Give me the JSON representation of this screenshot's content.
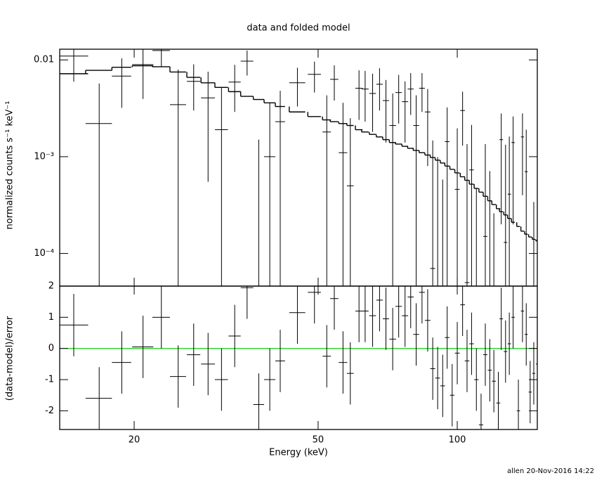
{
  "chart_data": {
    "type": "errorbar",
    "title": "data and folded model",
    "xlabel": "Energy (keV)",
    "ylabel": "normalized counts s⁻¹ keV⁻¹",
    "residual_ylabel": "(data-model)/error",
    "log_x": true,
    "log_y": true,
    "color": "#000000",
    "zero_line_color": "#00c800",
    "xlim": [
      13.8,
      149
    ],
    "xticks": [
      20,
      50,
      100
    ],
    "ylim": [
      4.6e-05,
      0.0129
    ],
    "yticks": [
      0.01,
      {
        "value": 0.001,
        "label": "10⁻³"
      },
      {
        "value": 0.0001,
        "label": "10⁻⁴"
      }
    ],
    "residual_ylim": [
      -2.6,
      2
    ],
    "residual_yticks": [
      -2,
      -1,
      0,
      1,
      2
    ],
    "residual_error": 1,
    "x": [
      14.8,
      16.8,
      18.8,
      20.9,
      22.9,
      24.9,
      26.9,
      28.9,
      30.9,
      33.0,
      35.1,
      37.2,
      39.3,
      41.4,
      45.1,
      49.1,
      52.2,
      54.2,
      56.6,
      58.7,
      61.3,
      63.2,
      65.6,
      67.9,
      70.1,
      72.5,
      74.7,
      77.1,
      79.3,
      81.5,
      83.9,
      86.3,
      88.5,
      90.7,
      93.0,
      95.1,
      97.5,
      100,
      102.7,
      105,
      107.4,
      110,
      112.6,
      115,
      117.6,
      120,
      122.7,
      124.5,
      127.2,
      129.6,
      132.1,
      135.6,
      138.4,
      141,
      143.8,
      146.4,
      149
    ],
    "xerr": [
      1.1,
      1.1,
      0.9,
      1.1,
      1.0,
      1.0,
      0.9,
      1.0,
      1.0,
      1.0,
      1.1,
      1.0,
      1.1,
      1.0,
      1.8,
      1.6,
      1.1,
      1.1,
      1.2,
      1.0,
      1.1,
      1.1,
      1.1,
      1.1,
      1.1,
      1.2,
      1.2,
      1.2,
      1.2,
      1.2,
      1.2,
      1.2,
      1.1,
      1.1,
      1.1,
      1.1,
      1.1,
      1.2,
      1.2,
      1.2,
      1.2,
      1.2,
      1.2,
      1.2,
      1.2,
      1.2,
      1.2,
      1.1,
      1.1,
      1.1,
      1.1,
      1.1,
      1.1,
      1.1,
      1.1,
      1.1,
      1.1
    ],
    "values": [
      0.01095,
      0.0022,
      0.0068,
      0.00895,
      0.0125,
      0.00345,
      0.006,
      0.00405,
      0.0019,
      0.0059,
      0.0097,
      -0.0015,
      0.001,
      0.0023,
      0.0058,
      0.0071,
      0.0018,
      0.0063,
      0.0011,
      0.0005,
      0.0051,
      0.005,
      0.0045,
      0.0056,
      0.0038,
      0.0021,
      0.0046,
      0.0037,
      0.005,
      0.0021,
      0.0051,
      0.0029,
      7e-05,
      -0.00041,
      -0.00082,
      0.00143,
      -0.0014,
      0.00046,
      0.003,
      5e-05,
      0.00073,
      -0.00083,
      -0.0028,
      0.00015,
      -0.00049,
      -0.00094,
      -0.0018,
      0.0015,
      0.00013,
      0.00041,
      0.0014,
      -0.002,
      0.0016,
      0.0007,
      -0.0014,
      -0.00066,
      -0.00036
    ],
    "errors": [
      0.005,
      0.0035,
      0.0036,
      0.005,
      0.004,
      0.0045,
      0.003,
      0.0035,
      0.0033,
      0.003,
      0.0028,
      0.003,
      0.0026,
      0.0025,
      0.0025,
      0.0025,
      0.0025,
      0.0025,
      0.0025,
      0.002,
      0.0027,
      0.0027,
      0.0027,
      0.0026,
      0.0024,
      0.0024,
      0.0024,
      0.0023,
      0.0023,
      0.0022,
      0.0022,
      0.0021,
      0.0014,
      0.0014,
      0.0014,
      0.0018,
      0.0014,
      0.0015,
      0.0017,
      0.0013,
      0.0014,
      0.0013,
      0.0013,
      0.0012,
      0.0012,
      0.0012,
      0.0012,
      0.0013,
      0.0012,
      0.0012,
      0.0012,
      0.0011,
      0.0012,
      0.0012,
      0.0011,
      0.001,
      0.001
    ],
    "model": [
      0.0072,
      0.0078,
      0.0084,
      0.0087,
      0.0085,
      0.0075,
      0.0066,
      0.0058,
      0.0052,
      0.0047,
      0.0042,
      0.0039,
      0.0036,
      0.0033,
      0.0029,
      0.0026,
      0.0024,
      0.0023,
      0.0022,
      0.0021,
      0.0019,
      0.0018,
      0.0017,
      0.0016,
      0.0015,
      0.0014,
      0.00135,
      0.00128,
      0.00122,
      0.00116,
      0.0011,
      0.00104,
      0.00098,
      0.00092,
      0.00086,
      0.0008,
      0.00074,
      0.00068,
      0.00062,
      0.00057,
      0.00052,
      0.00047,
      0.00043,
      0.00039,
      0.00035,
      0.00032,
      0.00029,
      0.00027,
      0.00025,
      0.00023,
      0.00021,
      0.00019,
      0.00017,
      0.000158,
      0.000148,
      0.00014,
      0.000135
    ],
    "residuals": [
      0.75,
      -1.6,
      -0.45,
      0.05,
      1.0,
      -0.9,
      -0.2,
      -0.5,
      -1.0,
      0.4,
      1.95,
      -1.8,
      -1.0,
      -0.4,
      1.15,
      1.8,
      -0.25,
      1.6,
      -0.45,
      -0.8,
      1.2,
      1.2,
      1.05,
      1.55,
      0.95,
      0.3,
      1.35,
      1.05,
      1.65,
      0.45,
      1.8,
      0.9,
      -0.65,
      -0.95,
      -1.2,
      0.35,
      -1.5,
      -0.15,
      1.4,
      -0.4,
      0.15,
      -1.0,
      -2.45,
      -0.2,
      -0.7,
      -1.05,
      -1.75,
      0.95,
      -0.1,
      0.15,
      1.0,
      -2.0,
      1.2,
      0.45,
      -1.4,
      -0.8,
      -0.5
    ]
  },
  "footer": "allen 20-Nov-2016 14:22"
}
